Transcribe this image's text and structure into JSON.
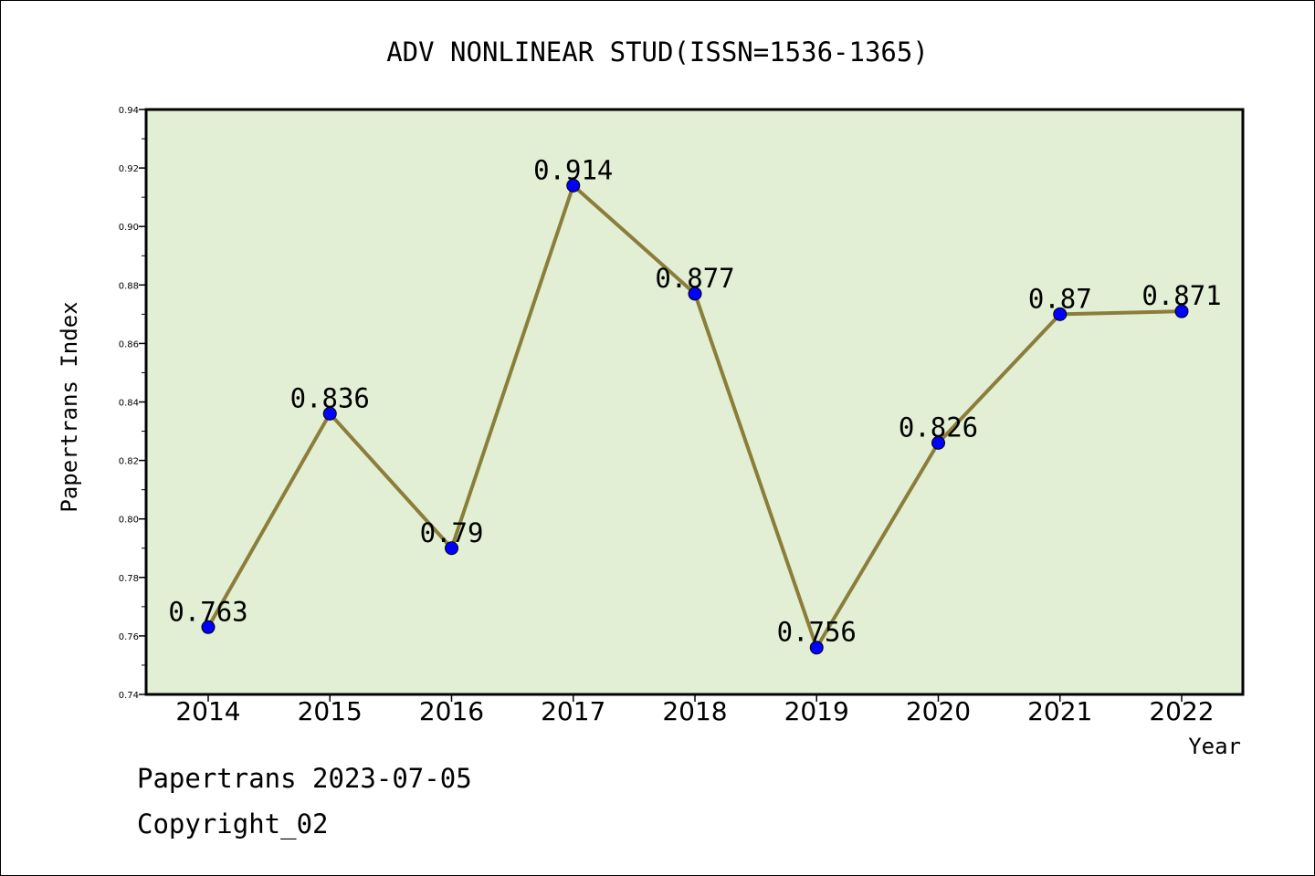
{
  "chart_data": {
    "type": "line",
    "title": "ADV NONLINEAR STUD(ISSN=1536-1365)",
    "xlabel": "Year",
    "ylabel": "Papertrans Index",
    "x": [
      "2014",
      "2015",
      "2016",
      "2017",
      "2018",
      "2019",
      "2020",
      "2021",
      "2022"
    ],
    "series": [
      {
        "values": [
          0.763,
          0.836,
          0.79,
          0.914,
          0.877,
          0.756,
          0.826,
          0.87,
          0.871
        ],
        "labels": [
          "0.763",
          "0.836",
          "0.79",
          "0.914",
          "0.877",
          "0.756",
          "0.826",
          "0.87",
          "0.871"
        ]
      }
    ],
    "ylim": [
      0.74,
      0.94
    ],
    "yticks": [
      "0.74",
      "0.76",
      "0.78",
      "0.80",
      "0.82",
      "0.84",
      "0.86",
      "0.88",
      "0.90",
      "0.92",
      "0.94"
    ],
    "grid": false,
    "colors": {
      "line": "#8b7d3a",
      "marker": "#0000ff",
      "plot_bg": "#e2efd4"
    }
  },
  "footer": {
    "date_line": "Papertrans 2023-07-05",
    "copyright_line": "Copyright_02"
  }
}
